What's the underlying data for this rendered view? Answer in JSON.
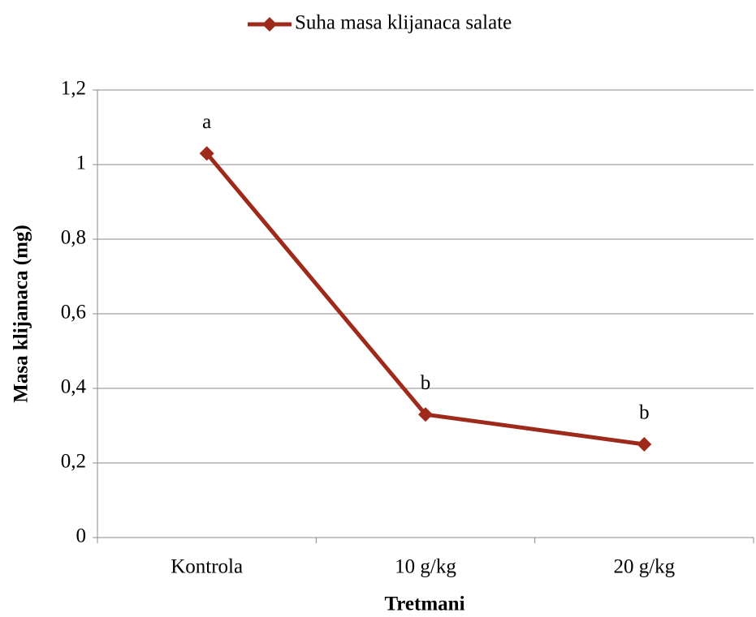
{
  "chart_data": {
    "type": "line",
    "y_label": "Masa klijanaca (mg)",
    "x_label": "Tretmani",
    "categories": [
      "Kontrola",
      "10 g/kg",
      "20 g/kg"
    ],
    "series": [
      {
        "name": "Suha masa klijanaca salate",
        "color": "#9e2a1c",
        "values": [
          1.03,
          0.33,
          0.25
        ]
      }
    ],
    "annotations": [
      "a",
      "b",
      "b"
    ],
    "ylim": [
      0,
      1.2
    ],
    "yticks": [
      0,
      {
        "value": 0.2,
        "label": "0,2"
      },
      {
        "value": 0.4,
        "label": "0,4"
      },
      {
        "value": 0.6,
        "label": "0,6"
      },
      {
        "value": 0.8,
        "label": "0,8"
      },
      1,
      {
        "value": 1.2,
        "label": "1,2"
      }
    ],
    "grid": true,
    "legend": "top"
  }
}
